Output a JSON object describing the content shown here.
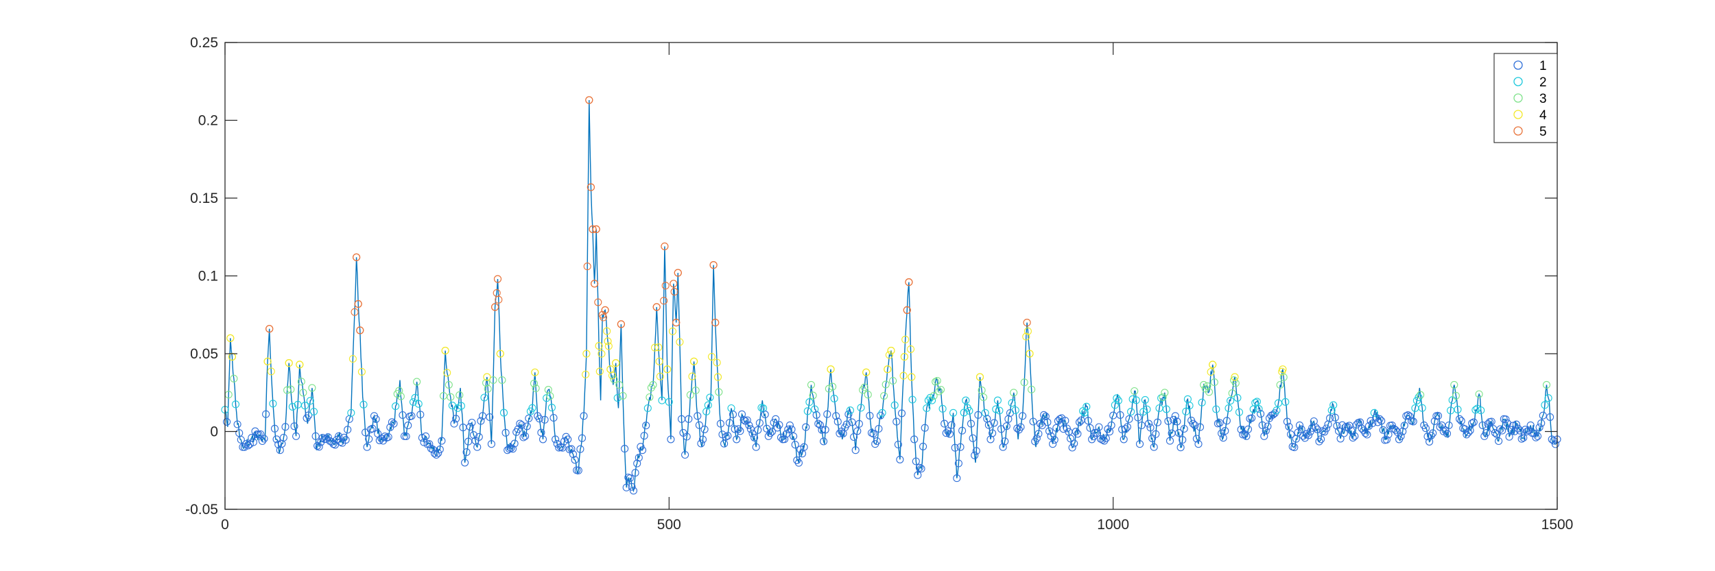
{
  "chart_data": {
    "type": "line",
    "title": "",
    "xlabel": "",
    "ylabel": "",
    "xlim": [
      0,
      1500
    ],
    "ylim": [
      -0.05,
      0.25
    ],
    "x_ticks": [
      0,
      500,
      1000,
      1500
    ],
    "x_tick_labels": [
      "0",
      "500",
      "1000",
      "1500"
    ],
    "y_ticks": [
      -0.05,
      0,
      0.05,
      0.1,
      0.15,
      0.2,
      0.25
    ],
    "y_tick_labels": [
      "-0.05",
      "0",
      "0.05",
      "0.1",
      "0.15",
      "0.2",
      "0.25"
    ],
    "grid": false,
    "legend_position": "top-right",
    "line_color": "#0072bd",
    "marker": "circle",
    "series": [
      {
        "name": "1",
        "color": "#2f6fd8"
      },
      {
        "name": "2",
        "color": "#1ac8dc"
      },
      {
        "name": "3",
        "color": "#7ee28a"
      },
      {
        "name": "4",
        "color": "#f2e82a"
      },
      {
        "name": "5",
        "color": "#e8733a"
      }
    ],
    "baseline": [
      [
        0,
        0.014
      ],
      [
        3,
        0.003
      ],
      [
        6,
        0.06
      ],
      [
        8,
        0.048
      ],
      [
        10,
        0.034
      ],
      [
        13,
        0.012
      ],
      [
        17,
        -0.005
      ],
      [
        22,
        -0.01
      ],
      [
        30,
        -0.004
      ],
      [
        38,
        -0.002
      ],
      [
        45,
        -0.006
      ],
      [
        48,
        0.045
      ],
      [
        50,
        0.066
      ],
      [
        53,
        0.028
      ],
      [
        57,
        -0.005
      ],
      [
        62,
        -0.012
      ],
      [
        68,
        0.003
      ],
      [
        72,
        0.044
      ],
      [
        75,
        0.02
      ],
      [
        80,
        -0.003
      ],
      [
        84,
        0.043
      ],
      [
        88,
        0.025
      ],
      [
        93,
        0.005
      ],
      [
        98,
        0.028
      ],
      [
        103,
        -0.012
      ],
      [
        110,
        -0.004
      ],
      [
        115,
        -0.002
      ],
      [
        122,
        -0.008
      ],
      [
        128,
        -0.003
      ],
      [
        135,
        -0.006
      ],
      [
        142,
        0.012
      ],
      [
        148,
        0.112
      ],
      [
        150,
        0.082
      ],
      [
        152,
        0.065
      ],
      [
        155,
        0.022
      ],
      [
        160,
        -0.01
      ],
      [
        168,
        0.01
      ],
      [
        175,
        -0.006
      ],
      [
        182,
        -0.004
      ],
      [
        190,
        0.005
      ],
      [
        197,
        0.033
      ],
      [
        202,
        -0.003
      ],
      [
        210,
        0.01
      ],
      [
        216,
        0.032
      ],
      [
        222,
        -0.004
      ],
      [
        230,
        -0.008
      ],
      [
        238,
        -0.015
      ],
      [
        244,
        -0.006
      ],
      [
        248,
        0.052
      ],
      [
        252,
        0.03
      ],
      [
        258,
        0.005
      ],
      [
        265,
        0.028
      ],
      [
        270,
        -0.02
      ],
      [
        277,
        0.005
      ],
      [
        284,
        -0.01
      ],
      [
        290,
        0.01
      ],
      [
        295,
        0.035
      ],
      [
        300,
        -0.008
      ],
      [
        304,
        0.08
      ],
      [
        307,
        0.098
      ],
      [
        310,
        0.05
      ],
      [
        313,
        0.022
      ],
      [
        318,
        -0.012
      ],
      [
        325,
        -0.008
      ],
      [
        332,
        0.005
      ],
      [
        338,
        -0.003
      ],
      [
        345,
        0.012
      ],
      [
        349,
        0.038
      ],
      [
        352,
        0.01
      ],
      [
        358,
        -0.005
      ],
      [
        363,
        0.026
      ],
      [
        367,
        0.022
      ],
      [
        372,
        -0.005
      ],
      [
        378,
        -0.01
      ],
      [
        386,
        -0.005
      ],
      [
        393,
        -0.018
      ],
      [
        398,
        -0.025
      ],
      [
        404,
        0.01
      ],
      [
        407,
        0.05
      ],
      [
        410,
        0.213
      ],
      [
        412,
        0.157
      ],
      [
        414,
        0.13
      ],
      [
        416,
        0.095
      ],
      [
        418,
        0.13
      ],
      [
        421,
        0.055
      ],
      [
        423,
        0.02
      ],
      [
        425,
        0.075
      ],
      [
        428,
        0.078
      ],
      [
        431,
        0.058
      ],
      [
        434,
        0.04
      ],
      [
        437,
        0.03
      ],
      [
        440,
        0.044
      ],
      [
        443,
        0.015
      ],
      [
        446,
        0.069
      ],
      [
        449,
        0.005
      ],
      [
        452,
        -0.036
      ],
      [
        456,
        -0.03
      ],
      [
        460,
        -0.038
      ],
      [
        465,
        -0.015
      ],
      [
        470,
        -0.012
      ],
      [
        476,
        0.015
      ],
      [
        482,
        0.03
      ],
      [
        486,
        0.08
      ],
      [
        489,
        0.045
      ],
      [
        492,
        0.02
      ],
      [
        495,
        0.119
      ],
      [
        498,
        0.04
      ],
      [
        502,
        -0.005
      ],
      [
        505,
        0.095
      ],
      [
        508,
        0.07
      ],
      [
        510,
        0.102
      ],
      [
        514,
        0.008
      ],
      [
        518,
        -0.015
      ],
      [
        522,
        0.008
      ],
      [
        528,
        0.045
      ],
      [
        532,
        0.01
      ],
      [
        537,
        -0.01
      ],
      [
        543,
        0.015
      ],
      [
        547,
        0.02
      ],
      [
        550,
        0.107
      ],
      [
        552,
        0.07
      ],
      [
        555,
        0.035
      ],
      [
        558,
        0.005
      ],
      [
        563,
        -0.01
      ],
      [
        570,
        0.015
      ],
      [
        576,
        -0.005
      ],
      [
        583,
        0.01
      ],
      [
        590,
        0.004
      ],
      [
        598,
        -0.01
      ],
      [
        605,
        0.02
      ],
      [
        612,
        -0.003
      ],
      [
        620,
        0.008
      ],
      [
        628,
        -0.005
      ],
      [
        636,
        0.004
      ],
      [
        645,
        -0.018
      ],
      [
        652,
        -0.01
      ],
      [
        660,
        0.03
      ],
      [
        668,
        0.005
      ],
      [
        675,
        -0.008
      ],
      [
        682,
        0.04
      ],
      [
        688,
        0.01
      ],
      [
        695,
        -0.005
      ],
      [
        703,
        0.015
      ],
      [
        710,
        -0.012
      ],
      [
        717,
        0.022
      ],
      [
        722,
        0.038
      ],
      [
        727,
        0.005
      ],
      [
        732,
        -0.008
      ],
      [
        740,
        0.012
      ],
      [
        746,
        0.04
      ],
      [
        750,
        0.052
      ],
      [
        755,
        0.01
      ],
      [
        760,
        -0.018
      ],
      [
        765,
        0.048
      ],
      [
        768,
        0.078
      ],
      [
        770,
        0.096
      ],
      [
        773,
        0.035
      ],
      [
        776,
        -0.005
      ],
      [
        780,
        -0.028
      ],
      [
        785,
        -0.02
      ],
      [
        790,
        0.015
      ],
      [
        796,
        0.02
      ],
      [
        800,
        0.032
      ],
      [
        805,
        0.028
      ],
      [
        810,
        0.005
      ],
      [
        815,
        -0.003
      ],
      [
        820,
        0.012
      ],
      [
        824,
        -0.03
      ],
      [
        828,
        -0.01
      ],
      [
        834,
        0.02
      ],
      [
        840,
        0.005
      ],
      [
        845,
        -0.02
      ],
      [
        850,
        0.035
      ],
      [
        856,
        0.012
      ],
      [
        862,
        -0.005
      ],
      [
        870,
        0.02
      ],
      [
        876,
        -0.01
      ],
      [
        882,
        0.008
      ],
      [
        888,
        0.025
      ],
      [
        893,
        -0.005
      ],
      [
        898,
        0.01
      ],
      [
        903,
        0.07
      ],
      [
        906,
        0.05
      ],
      [
        909,
        0.015
      ],
      [
        913,
        -0.01
      ],
      [
        918,
        0.005
      ],
      [
        925,
        0.012
      ],
      [
        932,
        -0.008
      ],
      [
        940,
        0.008
      ],
      [
        948,
        0.002
      ],
      [
        955,
        -0.01
      ],
      [
        962,
        0.006
      ],
      [
        970,
        0.016
      ],
      [
        976,
        -0.005
      ],
      [
        983,
        0.002
      ],
      [
        990,
        -0.006
      ],
      [
        998,
        0.004
      ],
      [
        1005,
        0.024
      ],
      [
        1011,
        -0.005
      ],
      [
        1018,
        0.008
      ],
      [
        1025,
        0.026
      ],
      [
        1030,
        -0.008
      ],
      [
        1035,
        0.02
      ],
      [
        1040,
        0.005
      ],
      [
        1046,
        -0.01
      ],
      [
        1052,
        0.015
      ],
      [
        1058,
        0.025
      ],
      [
        1064,
        -0.006
      ],
      [
        1070,
        0.01
      ],
      [
        1077,
        -0.01
      ],
      [
        1083,
        0.02
      ],
      [
        1090,
        0.005
      ],
      [
        1096,
        -0.008
      ],
      [
        1102,
        0.03
      ],
      [
        1107,
        0.025
      ],
      [
        1112,
        0.043
      ],
      [
        1117,
        0.01
      ],
      [
        1123,
        -0.005
      ],
      [
        1130,
        0.015
      ],
      [
        1137,
        0.035
      ],
      [
        1143,
        0.005
      ],
      [
        1150,
        -0.003
      ],
      [
        1157,
        0.012
      ],
      [
        1163,
        0.02
      ],
      [
        1170,
        -0.003
      ],
      [
        1177,
        0.008
      ],
      [
        1185,
        0.015
      ],
      [
        1191,
        0.04
      ],
      [
        1197,
        0.002
      ],
      [
        1203,
        -0.01
      ],
      [
        1210,
        0.004
      ],
      [
        1217,
        -0.003
      ],
      [
        1225,
        0.006
      ],
      [
        1233,
        -0.006
      ],
      [
        1240,
        0.002
      ],
      [
        1247,
        0.018
      ],
      [
        1255,
        -0.002
      ],
      [
        1263,
        0.005
      ],
      [
        1270,
        -0.004
      ],
      [
        1278,
        0.006
      ],
      [
        1286,
        -0.002
      ],
      [
        1294,
        0.012
      ],
      [
        1300,
        0.008
      ],
      [
        1307,
        -0.004
      ],
      [
        1314,
        0.004
      ],
      [
        1322,
        -0.005
      ],
      [
        1330,
        0.01
      ],
      [
        1337,
        0.004
      ],
      [
        1345,
        0.028
      ],
      [
        1350,
        0.004
      ],
      [
        1357,
        -0.006
      ],
      [
        1364,
        0.01
      ],
      [
        1370,
        0.004
      ],
      [
        1377,
        -0.004
      ],
      [
        1384,
        0.03
      ],
      [
        1390,
        0.008
      ],
      [
        1398,
        -0.002
      ],
      [
        1406,
        0.006
      ],
      [
        1412,
        0.024
      ],
      [
        1418,
        -0.003
      ],
      [
        1425,
        0.005
      ],
      [
        1433,
        -0.006
      ],
      [
        1440,
        0.008
      ],
      [
        1447,
        -0.002
      ],
      [
        1455,
        0.005
      ],
      [
        1462,
        -0.004
      ],
      [
        1470,
        0.004
      ],
      [
        1478,
        -0.003
      ],
      [
        1485,
        0.012
      ],
      [
        1488,
        0.03
      ],
      [
        1491,
        0.02
      ],
      [
        1494,
        -0.005
      ],
      [
        1497,
        -0.008
      ],
      [
        1500,
        -0.005
      ]
    ]
  }
}
